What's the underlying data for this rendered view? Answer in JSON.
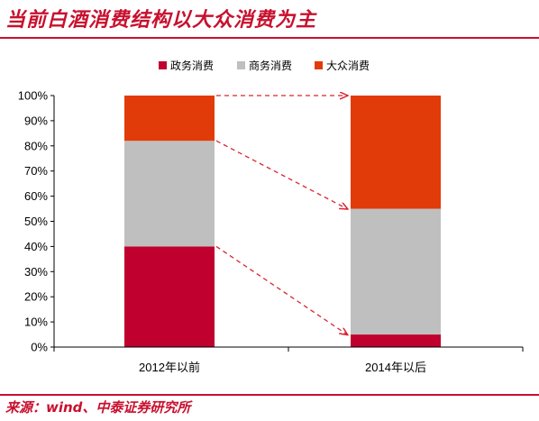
{
  "header": {
    "title": "当前白酒消费结构以大众消费为主"
  },
  "footer": {
    "source": "来源：wind、中泰证券研究所"
  },
  "colors": {
    "accent": "#c8102e",
    "arrow": "#d9252f"
  },
  "chart_data": {
    "type": "bar",
    "stacked": true,
    "categories": [
      "2012年以前",
      "2014年以后"
    ],
    "series": [
      {
        "name": "政务消费",
        "color": "#c0002f",
        "values": [
          40,
          5
        ]
      },
      {
        "name": "商务消费",
        "color": "#bfbfbf",
        "values": [
          42,
          50
        ]
      },
      {
        "name": "大众消费",
        "color": "#e23b0a",
        "values": [
          18,
          45
        ]
      }
    ],
    "ylim": [
      0,
      100
    ],
    "yticks": [
      "0%",
      "10%",
      "20%",
      "30%",
      "40%",
      "50%",
      "60%",
      "70%",
      "80%",
      "90%",
      "100%"
    ],
    "legend_position": "top-center",
    "grid": false,
    "annotations": "dashed arrows connecting segment tops between the two bars"
  }
}
